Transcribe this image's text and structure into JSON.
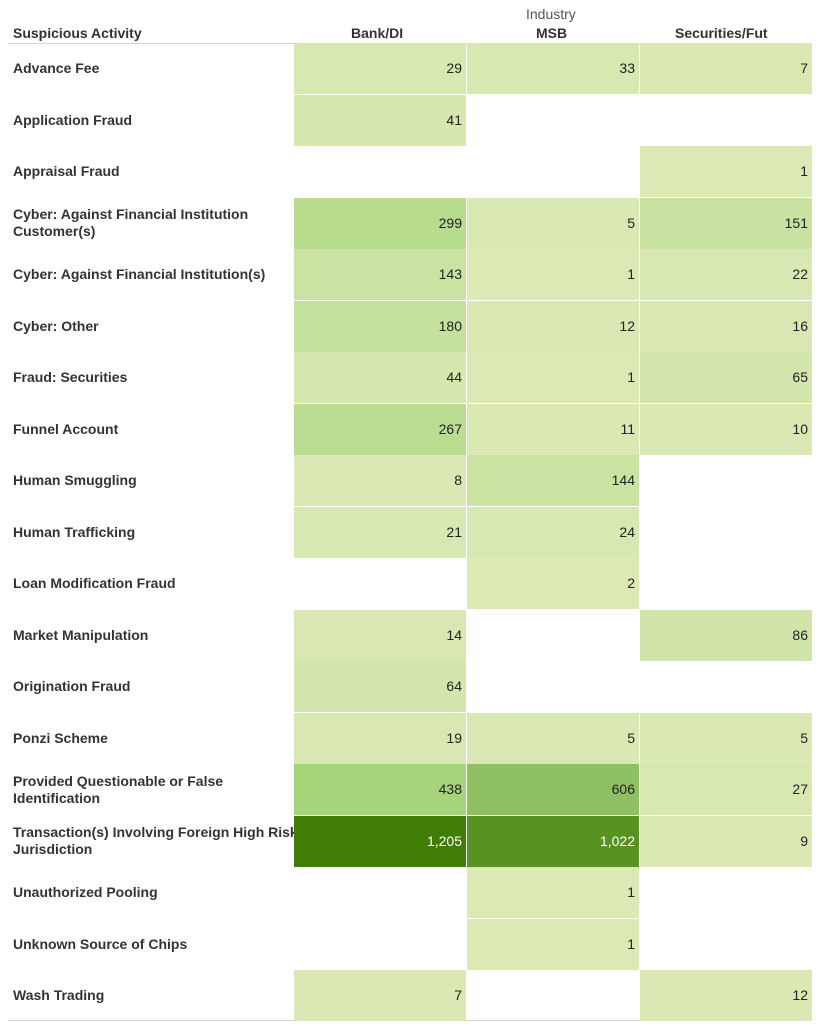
{
  "headers": {
    "row_label": "Suspicious Activity",
    "group_label": "Industry",
    "columns": [
      "Bank/DI",
      "MSB",
      "Securities/Fut"
    ]
  },
  "chart_data": {
    "type": "heatmap",
    "columns": [
      "Bank/DI",
      "MSB",
      "Securities/Fut"
    ],
    "rows": [
      "Advance Fee",
      "Application Fraud",
      "Appraisal Fraud",
      "Cyber: Against Financial Institution Customer(s)",
      "Cyber: Against Financial Institution(s)",
      "Cyber: Other",
      "Fraud: Securities",
      "Funnel Account",
      "Human Smuggling",
      "Human Trafficking",
      "Loan Modification Fraud",
      "Market Manipulation",
      "Origination Fraud",
      "Ponzi Scheme",
      "Provided Questionable or False Identification",
      "Transaction(s) Involving Foreign High Risk Jurisdiction",
      "Unauthorized Pooling",
      "Unknown Source of Chips",
      "Wash Trading"
    ],
    "values": [
      [
        29,
        33,
        7
      ],
      [
        41,
        null,
        null
      ],
      [
        null,
        null,
        1
      ],
      [
        299,
        5,
        151
      ],
      [
        143,
        1,
        22
      ],
      [
        180,
        12,
        16
      ],
      [
        44,
        1,
        65
      ],
      [
        267,
        11,
        10
      ],
      [
        8,
        144,
        null
      ],
      [
        21,
        24,
        null
      ],
      [
        null,
        2,
        null
      ],
      [
        14,
        null,
        86
      ],
      [
        64,
        null,
        null
      ],
      [
        19,
        5,
        5
      ],
      [
        438,
        606,
        27
      ],
      [
        1205,
        1022,
        9
      ],
      [
        null,
        1,
        null
      ],
      [
        null,
        1,
        null
      ],
      [
        7,
        null,
        12
      ]
    ],
    "color_scale": {
      "low": "#dbe9b5",
      "mid": "#a8d67e",
      "high": "#3f7d05",
      "max_value": 1205
    }
  }
}
